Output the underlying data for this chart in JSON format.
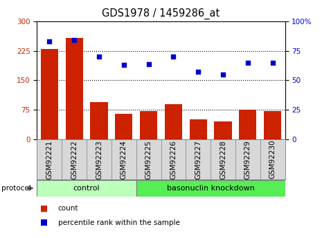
{
  "title": "GDS1978 / 1459286_at",
  "categories": [
    "GSM92221",
    "GSM92222",
    "GSM92223",
    "GSM92224",
    "GSM92225",
    "GSM92226",
    "GSM92227",
    "GSM92228",
    "GSM92229",
    "GSM92230"
  ],
  "bar_values": [
    230,
    258,
    95,
    65,
    72,
    90,
    50,
    45,
    75,
    72
  ],
  "percentile_values": [
    83,
    84,
    70,
    63,
    64,
    70,
    57,
    55,
    65,
    65
  ],
  "bar_color": "#cc2200",
  "dot_color": "#0000cc",
  "ylim_left": [
    0,
    300
  ],
  "ylim_right": [
    0,
    100
  ],
  "yticks_left": [
    0,
    75,
    150,
    225,
    300
  ],
  "yticks_right": [
    0,
    25,
    50,
    75,
    100
  ],
  "control_samples": 4,
  "control_label": "control",
  "knockdown_label": "basonuclin knockdown",
  "protocol_label": "protocol",
  "legend_count": "count",
  "legend_percentile": "percentile rank within the sample",
  "control_color": "#bbffbb",
  "knockdown_color": "#55ee55",
  "cell_bg_color": "#d8d8d8",
  "grid_color": "#000000",
  "title_fontsize": 10.5,
  "tick_fontsize": 7.5
}
